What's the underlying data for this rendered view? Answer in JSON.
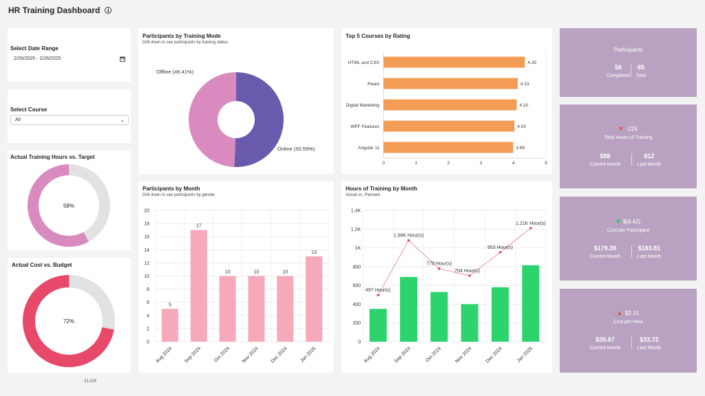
{
  "header": {
    "title": "HR Training Dashboard",
    "info_icon": "info-icon"
  },
  "filters": {
    "date_label": "Select Date Range",
    "date_value": "2/26/2025 - 2/26/2025",
    "course_label": "Select Course",
    "course_value": "All"
  },
  "gauges": {
    "hours": {
      "title": "Actual Training Hours vs. Target",
      "value_text": "58%",
      "value": 0.58,
      "color": "#d98bbf"
    },
    "cost": {
      "title": "Actual Cost vs. Budget",
      "value_text": "72%",
      "value": 0.72,
      "color": "#e8496a"
    }
  },
  "footer_code": "11-GS",
  "kpis": {
    "participants": {
      "title": "Participants",
      "completed_value": "58",
      "completed_label": "Completed",
      "total_value": "85",
      "total_label": "Total"
    },
    "hours": {
      "delta": "-224",
      "title": "Total Hours of Training",
      "current_value": "588",
      "current_label": "Current Month",
      "last_value": "812",
      "last_label": "Last Month"
    },
    "cost_participant": {
      "delta": "$(4.42)",
      "title": "Cost per Participant",
      "current_value": "$179.39",
      "current_label": "Current Month",
      "last_value": "$183.81",
      "last_label": "Last Month"
    },
    "cost_hour": {
      "delta": "$2.15",
      "title": "Cost per Hour",
      "current_value": "$35.87",
      "current_label": "Current Month",
      "last_value": "$33.72",
      "last_label": "Last Month"
    }
  },
  "chart_data": [
    {
      "type": "pie",
      "title": "Participants by Training Mode",
      "subtitle": "Drill down to see participants by training status.",
      "labels": [
        "Online (50.59%)",
        "Offline (49.41%)"
      ],
      "values": [
        50.59,
        49.41
      ],
      "colors": [
        "#6a5aad",
        "#d98bbf"
      ]
    },
    {
      "type": "bar",
      "orientation": "horizontal",
      "title": "Top 5 Courses by Rating",
      "categories": [
        "HTML and CSS",
        "React",
        "Digital Marketing",
        "WPF Features",
        "Angular 11"
      ],
      "values": [
        4.35,
        4.13,
        4.1,
        4.03,
        3.99
      ],
      "value_labels": [
        "4.35",
        "4.13",
        "4.10",
        "4.03",
        "3.99"
      ],
      "xlim": [
        0,
        5
      ],
      "xticks": [
        "0",
        "1",
        "2",
        "3",
        "4",
        "5"
      ],
      "color": "#f29c55"
    },
    {
      "type": "bar",
      "title": "Participants by Month",
      "subtitle": "Drill down to see participants by gender.",
      "categories": [
        "Aug 2024",
        "Sep 2024",
        "Oct 2024",
        "Nov 2024",
        "Dec 2024",
        "Jan 2025"
      ],
      "values": [
        5,
        17,
        10,
        10,
        10,
        13
      ],
      "ylim": [
        0,
        20
      ],
      "yticks": [
        "0",
        "2",
        "4",
        "6",
        "8",
        "10",
        "12",
        "14",
        "16",
        "18",
        "20"
      ],
      "color": "#f6a9bb"
    },
    {
      "type": "bar",
      "title": "Hours of Training by Month",
      "subtitle": "Actual vs. Planned",
      "categories": [
        "Aug 2024",
        "Sep 2024",
        "Oct 2024",
        "Nov 2024",
        "Dec 2024",
        "Jan 2025"
      ],
      "series": [
        {
          "kind": "bar",
          "values": [
            350,
            690,
            530,
            400,
            580,
            815
          ],
          "color": "#2dd46e"
        },
        {
          "kind": "line",
          "values": [
            497,
            1080,
            779,
            704,
            953,
            1210
          ],
          "labels": [
            "497 Hour(s)",
            "1.08K Hour(s)",
            "779 Hour(s)",
            "704 Hour(s)",
            "953 Hour(s)",
            "1.21K Hour(s)"
          ],
          "color": "#e58aa6"
        }
      ],
      "ylim": [
        0,
        1400
      ],
      "yticks": [
        "0",
        "200",
        "400",
        "600",
        "800",
        "1K",
        "1.2K",
        "1.4K"
      ]
    }
  ]
}
